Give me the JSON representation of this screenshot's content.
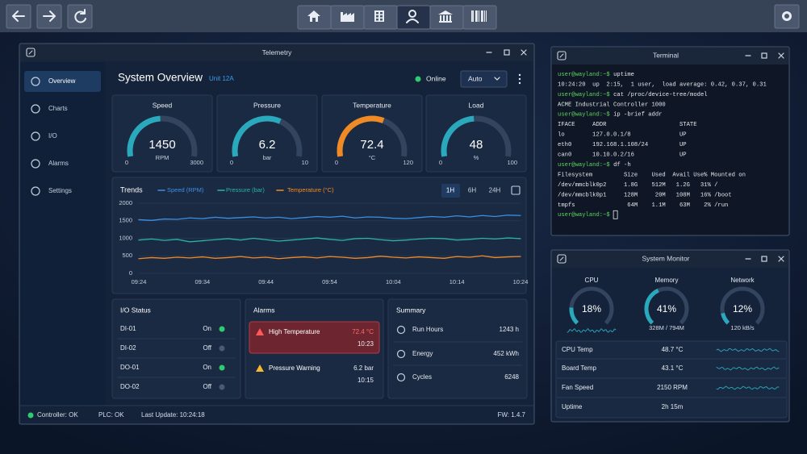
{
  "telemetry": {
    "title": "Telemetry",
    "nav": [
      "Overview",
      "Charts",
      "I/O",
      "Alarms",
      "Settings"
    ],
    "heading": "System Overview",
    "unit": "Unit 12A",
    "status": "Online",
    "mode": "Auto",
    "gauges": [
      {
        "title": "Speed",
        "value": 1450,
        "unit": "RPM",
        "min": 0,
        "max": 3000,
        "color": "#2aa9bd"
      },
      {
        "title": "Pressure",
        "value": 6.2,
        "unit": "bar",
        "min": 0,
        "max": 10,
        "color": "#2aa9bd"
      },
      {
        "title": "Temperature",
        "value": 72.4,
        "unit": "°C",
        "min": 0,
        "max": 120,
        "color": "#f08a24"
      },
      {
        "title": "Load",
        "value": 48,
        "unit": "%",
        "min": 0,
        "max": 100,
        "color": "#2aa9bd"
      }
    ],
    "trends": {
      "type": "line",
      "title": "Trends",
      "ranges": [
        "1H",
        "6H",
        "24H"
      ],
      "x": [
        "09:24",
        "09:26",
        "09:28",
        "09:30",
        "09:32",
        "09:34",
        "09:36",
        "09:38",
        "09:40",
        "09:42",
        "09:44",
        "09:46",
        "09:48",
        "09:50",
        "09:52",
        "09:54",
        "09:56",
        "09:58",
        "10:00",
        "10:02",
        "10:04",
        "10:06",
        "10:08",
        "10:10",
        "10:12",
        "10:14",
        "10:16",
        "10:18",
        "10:20",
        "10:22",
        "10:24"
      ],
      "xticks": [
        "09:24",
        "09:34",
        "09:44",
        "09:54",
        "10:04",
        "10:14",
        "10:24"
      ],
      "ylim": [
        0,
        2000
      ],
      "yticks": [
        0,
        500,
        1000,
        1500,
        2000
      ],
      "grid": true,
      "series": [
        {
          "name": "Speed (RPM)",
          "color": "#3b8fe3",
          "values": [
            1530,
            1510,
            1550,
            1540,
            1580,
            1560,
            1600,
            1570,
            1590,
            1610,
            1580,
            1600,
            1560,
            1590,
            1620,
            1600,
            1630,
            1580,
            1610,
            1600,
            1570,
            1560,
            1590,
            1620,
            1600,
            1640,
            1610,
            1650,
            1620,
            1660,
            1650
          ]
        },
        {
          "name": "Pressure (bar)",
          "color": "#2bb59f",
          "values": [
            950,
            980,
            940,
            970,
            900,
            930,
            960,
            990,
            950,
            1000,
            960,
            920,
            950,
            980,
            1010,
            970,
            940,
            990,
            1000,
            960,
            930,
            950,
            980,
            1000,
            990,
            950,
            970,
            1000,
            980,
            1010,
            990
          ]
        },
        {
          "name": "Temperature (°C)",
          "color": "#f08a24",
          "values": [
            420,
            450,
            430,
            460,
            440,
            470,
            430,
            450,
            480,
            440,
            460,
            420,
            450,
            470,
            440,
            480,
            460,
            430,
            450,
            490,
            460,
            440,
            470,
            450,
            430,
            480,
            460,
            500,
            450,
            470,
            480
          ]
        }
      ]
    },
    "io": {
      "title": "I/O Status",
      "rows": [
        {
          "name": "DI-01",
          "state": "On",
          "active": true
        },
        {
          "name": "DI-02",
          "state": "Off",
          "active": false
        },
        {
          "name": "DO-01",
          "state": "On",
          "active": true
        },
        {
          "name": "DO-02",
          "state": "Off",
          "active": false
        }
      ]
    },
    "alarms": {
      "title": "Alarms",
      "items": [
        {
          "name": "High Temperature",
          "value": "72.4 °C",
          "time": "10:23",
          "level": "critical"
        },
        {
          "name": "Pressure Warning",
          "value": "6.2 bar",
          "time": "10:15",
          "level": "warning"
        }
      ]
    },
    "summary": {
      "title": "Summary",
      "rows": [
        {
          "name": "Run Hours",
          "value": "1243 h"
        },
        {
          "name": "Energy",
          "value": "452 kWh"
        },
        {
          "name": "Cycles",
          "value": "6248"
        }
      ]
    },
    "footer": {
      "controller": "Controller: OK",
      "plc": "PLC: OK",
      "last_update": "Last Update: 10:24:18",
      "firmware": "FW: 1.4.7"
    }
  },
  "terminal": {
    "title": "Terminal",
    "lines": [
      {
        "prompt": "user@wayland:~$",
        "text": "uptime"
      },
      {
        "text": "10:24:20  up  2:15,  1 user,  load average: 0.42, 0.37, 0.31"
      },
      {
        "prompt": "user@wayland:~$",
        "text": "cat /proc/device-tree/model"
      },
      {
        "text": "ACME Industrial Controller 1000"
      },
      {
        "prompt": "user@wayland:~$",
        "text": "ip -brief addr"
      },
      {
        "text": "IFACE     ADDR                     STATE"
      },
      {
        "text": "lo        127.0.0.1/8              UP"
      },
      {
        "text": "eth0      192.168.1.108/24         UP"
      },
      {
        "text": "can0      10.10.0.2/16             UP"
      },
      {
        "prompt": "user@wayland:~$",
        "text": "df -h"
      },
      {
        "text": "Filesystem         Size    Used  Avail Use% Mounted on"
      },
      {
        "text": "/dev/mmcblk0p2     1.8G    512M   1.2G   31% /"
      },
      {
        "text": "/dev/mmcblk0p1     128M     20M   108M   16% /boot"
      },
      {
        "text": "tmpfs               64M    1.1M    63M    2% /run"
      },
      {
        "prompt": "user@wayland:~$"
      }
    ]
  },
  "monitor": {
    "title": "System Monitor",
    "gauges": [
      {
        "name": "CPU",
        "value": 18,
        "value_label": "18%"
      },
      {
        "name": "Memory",
        "value": 41,
        "value_label": "41%",
        "detail": "328M / 794M"
      },
      {
        "name": "Network",
        "value": 12,
        "value_label": "12%",
        "detail": "120 kB/s"
      }
    ],
    "rows": [
      {
        "name": "CPU Temp",
        "value": "48.7 °C"
      },
      {
        "name": "Board Temp",
        "value": "43.1 °C"
      },
      {
        "name": "Fan Speed",
        "value": "2150 RPM"
      },
      {
        "name": "Uptime",
        "value": "2h 15m"
      }
    ]
  }
}
